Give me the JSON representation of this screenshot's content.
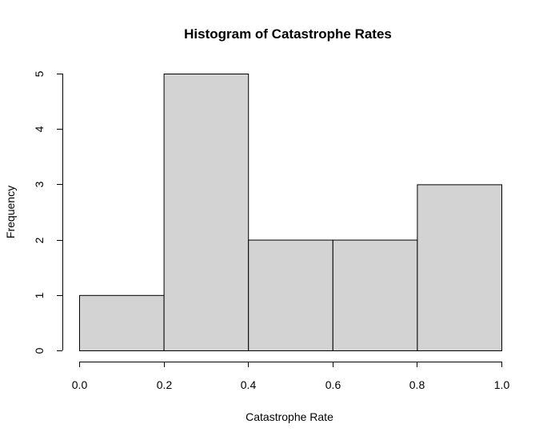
{
  "chart_data": {
    "type": "bar",
    "title": "Histogram of Catastrophe Rates",
    "xlabel": "Catastrophe Rate",
    "ylabel": "Frequency",
    "bins": [
      {
        "start": 0.0,
        "end": 0.2,
        "count": 1
      },
      {
        "start": 0.2,
        "end": 0.4,
        "count": 5
      },
      {
        "start": 0.4,
        "end": 0.6,
        "count": 2
      },
      {
        "start": 0.6,
        "end": 0.8,
        "count": 2
      },
      {
        "start": 0.8,
        "end": 1.0,
        "count": 3
      }
    ],
    "xlim": [
      0.0,
      1.0
    ],
    "ylim": [
      0,
      5
    ],
    "x_ticks": [
      {
        "value": 0.0,
        "label": "0.0"
      },
      {
        "value": 0.2,
        "label": "0.2"
      },
      {
        "value": 0.4,
        "label": "0.4"
      },
      {
        "value": 0.6,
        "label": "0.6"
      },
      {
        "value": 0.8,
        "label": "0.8"
      },
      {
        "value": 1.0,
        "label": "1.0"
      }
    ],
    "y_ticks": [
      {
        "value": 0,
        "label": "0"
      },
      {
        "value": 1,
        "label": "1"
      },
      {
        "value": 2,
        "label": "2"
      },
      {
        "value": 3,
        "label": "3"
      },
      {
        "value": 4,
        "label": "4"
      },
      {
        "value": 5,
        "label": "5"
      }
    ],
    "colors": {
      "bar_fill": "#d3d3d3",
      "bar_stroke": "#000000"
    },
    "grid": false
  }
}
